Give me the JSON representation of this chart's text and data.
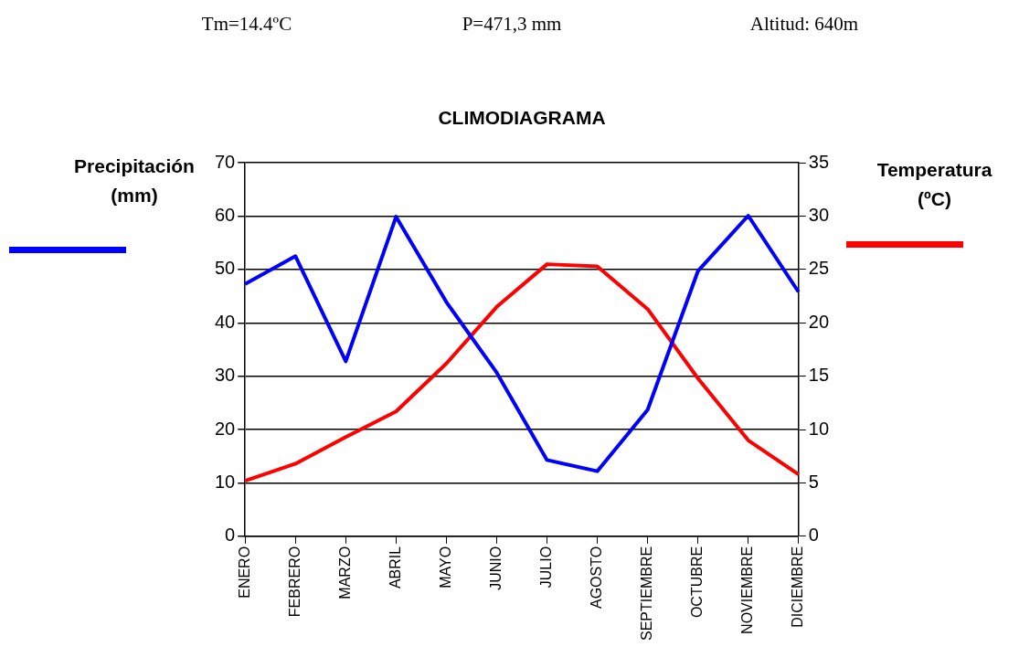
{
  "chart_data": {
    "type": "line",
    "title": "CLIMODIAGRAMA",
    "annotations": [
      "Tm=14.4ºC",
      "P=471,3 mm",
      "Altitud: 640m"
    ],
    "ylabel": "Precipitación (mm)",
    "y2label": "Temperatura (ºC)",
    "categories": [
      "ENERO",
      "FEBRERO",
      "MARZO",
      "ABRIL",
      "MAYO",
      "JUNIO",
      "JULIO",
      "AGOSTO",
      "SEPTIEMBRE",
      "OCTUBRE",
      "NOVIEMBRE",
      "DICIEMBRE"
    ],
    "series": [
      {
        "color": "#0000ff",
        "values": [
          47.3,
          52.5,
          32.8,
          59.9,
          43.9,
          30.7,
          14.3,
          12.2,
          23.7,
          49.7,
          60.1,
          45.8
        ]
      },
      {
        "color": "#ff0000",
        "axis": "y2",
        "values": [
          5.2,
          6.8,
          9.3,
          11.7,
          16.2,
          21.5,
          25.5,
          25.3,
          21.3,
          14.8,
          9.0,
          5.8
        ]
      }
    ],
    "ylim": [
      0,
      70
    ],
    "yticks": [
      0,
      10,
      20,
      30,
      40,
      50,
      60,
      70
    ],
    "y2lim": [
      0,
      35
    ],
    "y2ticks": [
      0,
      5,
      10,
      15,
      20,
      25,
      30,
      35
    ],
    "grid": "y",
    "marker": "none",
    "line_style": "solid"
  }
}
